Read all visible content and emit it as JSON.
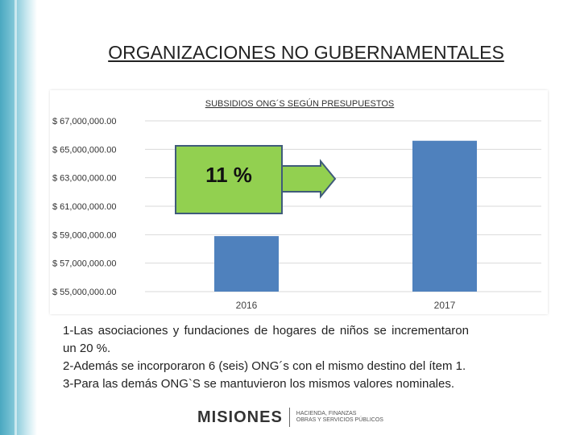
{
  "slide": {
    "title": "ORGANIZACIONES NO GUBERNAMENTALES"
  },
  "chart_data": {
    "type": "bar",
    "title": "SUBSIDIOS ONG´S SEGÚN PRESUPUESTOS",
    "categories": [
      "2016",
      "2017"
    ],
    "values": [
      58900000,
      65600000
    ],
    "ylim": [
      55000000,
      67000000
    ],
    "yticks": [
      67000000,
      65000000,
      63000000,
      61000000,
      59000000,
      57000000,
      55000000
    ],
    "ytick_labels": [
      "$ 67,000,000.00",
      "$ 65,000,000.00",
      "$ 63,000,000.00",
      "$ 61,000,000.00",
      "$ 59,000,000.00",
      "$ 57,000,000.00",
      "$ 55,000,000.00"
    ],
    "xlabel": "",
    "ylabel": "",
    "grid": true,
    "legend": "none",
    "bar_color": "#4f81bd",
    "annotation": {
      "label": "11 %",
      "fill": "#92d050",
      "stroke": "#3f5b7a"
    }
  },
  "notes": {
    "line1": "1-Las asociaciones y fundaciones de hogares de niños se incrementaron un 20 %.",
    "line2": "2-Además se incorporaron 6 (seis) ONG´s con el mismo destino del ítem 1.",
    "line3": "3-Para las demás ONG`S se mantuvieron los mismos valores nominales."
  },
  "logo": {
    "main": "MISIONES",
    "sub1": "HACIENDA, FINANZAS",
    "sub2": "OBRAS Y SERVICIOS PÚBLICOS"
  },
  "colors": {
    "accent_stripe": "#4aa8c0",
    "bar": "#4f81bd",
    "callout": "#92d050"
  }
}
